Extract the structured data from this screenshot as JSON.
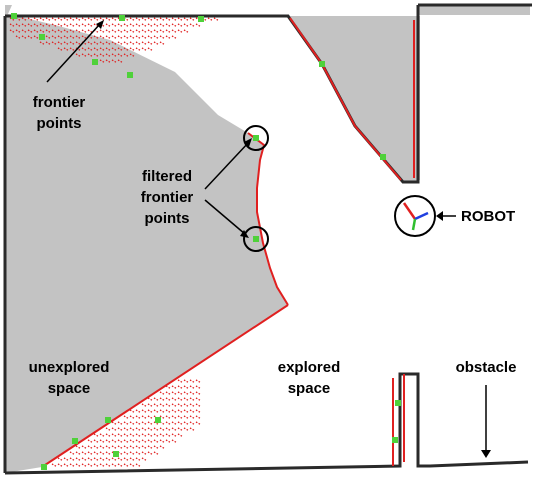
{
  "colors": {
    "unexplored": "#c3c3c3",
    "explored": "#ffffff",
    "obstacle_wall": "#2a2a2a",
    "frontier": "#e02020",
    "filtered_frontier": "#4fd13a",
    "robot_axis_x": "#e02020",
    "robot_axis_y": "#2fbf2f",
    "robot_axis_z": "#2040e0"
  },
  "labels": {
    "frontier_points": "frontier\npoints",
    "filtered_frontier_points": "filtered\nfrontier\npoints",
    "robot": "ROBOT",
    "unexplored_space": "unexplored\nspace",
    "explored_space": "explored\nspace",
    "obstacle": "obstacle"
  },
  "icons": {
    "robot": "robot-icon",
    "arrow": "arrow-icon"
  }
}
